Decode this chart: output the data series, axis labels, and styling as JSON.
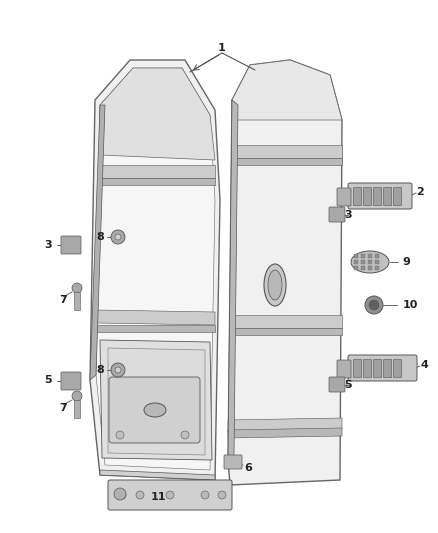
{
  "bg_color": "#ffffff",
  "fig_width": 4.38,
  "fig_height": 5.33,
  "dpi": 100,
  "panel_face": "#f0f0f0",
  "panel_face2": "#e8e8e8",
  "panel_edge": "#666666",
  "stripe_face": "#cccccc",
  "stripe_face2": "#b8b8b8",
  "hinge_face": "#c0c0c0",
  "dark_gray": "#555555",
  "mid_gray": "#888888",
  "label_fontsize": 8,
  "line_color": "#666666",
  "line_width": 0.7
}
